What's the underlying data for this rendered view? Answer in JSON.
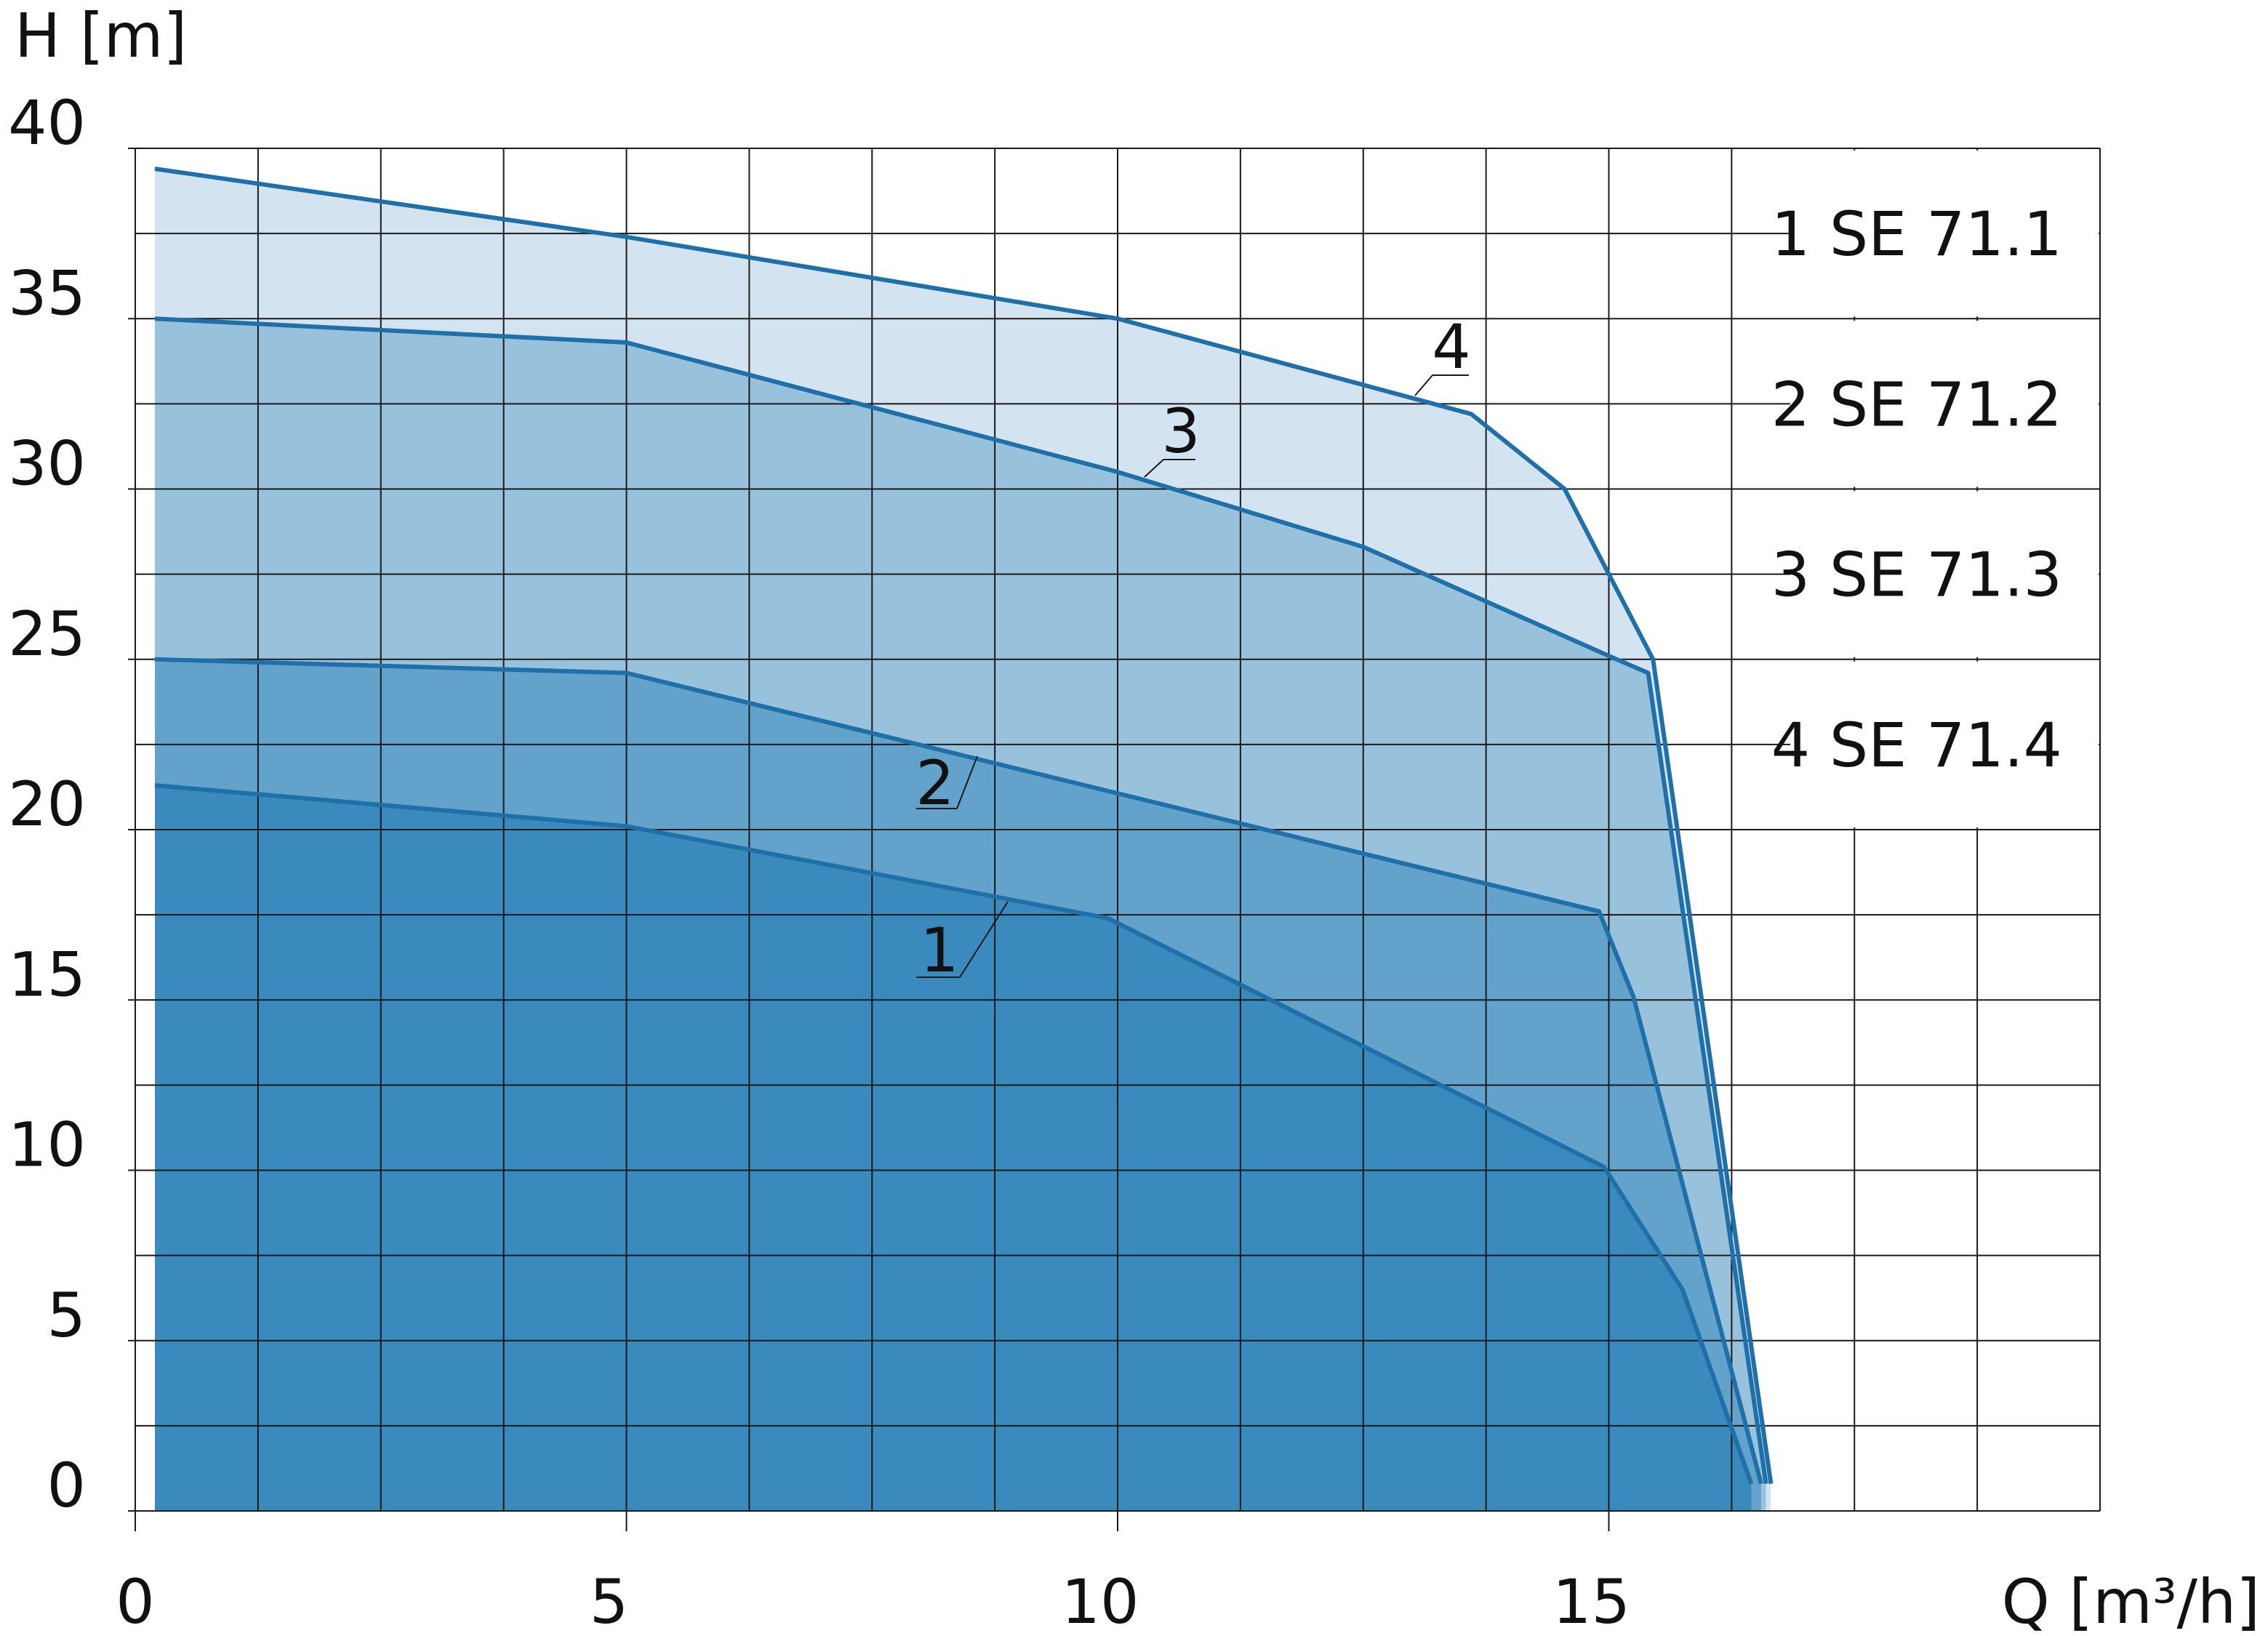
{
  "chart_data": {
    "type": "area",
    "y_label": "H [m]",
    "x_label": "Q [m³/h]",
    "xlim": [
      0,
      20
    ],
    "ylim": [
      0,
      40
    ],
    "xticks": [
      0,
      5,
      10,
      15
    ],
    "yticks": [
      0,
      5,
      10,
      15,
      20,
      25,
      30,
      35,
      40
    ],
    "xgrid": [
      0,
      1.25,
      2.5,
      3.75,
      5,
      6.25,
      7.5,
      8.75,
      10,
      11.25,
      12.5,
      13.75,
      15,
      16.25,
      17.5,
      18.75,
      20
    ],
    "ygrid": [
      0,
      2.5,
      5,
      7.5,
      10,
      12.5,
      15,
      17.5,
      20,
      22.5,
      25,
      27.5,
      30,
      32.5,
      35,
      37.5,
      40
    ],
    "grid": true,
    "legend": "upper right",
    "line_color": "#1f6fa8",
    "series": [
      {
        "name": "4 SE 71.4",
        "label": "4",
        "color": "#d3e4f0",
        "x": [
          0.2,
          5,
          10,
          13.6,
          14.55,
          15.45,
          16.65
        ],
        "values": [
          39.4,
          37.4,
          35,
          32.2,
          30,
          25,
          0.8
        ]
      },
      {
        "name": "3 SE 71.3",
        "label": "3",
        "color": "#98c2dc",
        "x": [
          0.2,
          5,
          10,
          12.5,
          15,
          15.4,
          16.6
        ],
        "values": [
          35,
          34.3,
          30.5,
          28.3,
          25.1,
          24.6,
          0.8
        ]
      },
      {
        "name": "2 SE 71.2",
        "label": "2",
        "color": "#63a3cb",
        "x": [
          0.2,
          5,
          14.9,
          15.25,
          16.55
        ],
        "values": [
          25,
          24.6,
          17.6,
          15.1,
          0.8
        ]
      },
      {
        "name": "1 SE 71.1",
        "label": "1",
        "color": "#3b8abd",
        "x": [
          0.2,
          5,
          9.9,
          14.95,
          15.75,
          16.45
        ],
        "values": [
          21.3,
          20.1,
          17.4,
          10.1,
          6.5,
          0.8
        ]
      }
    ]
  }
}
